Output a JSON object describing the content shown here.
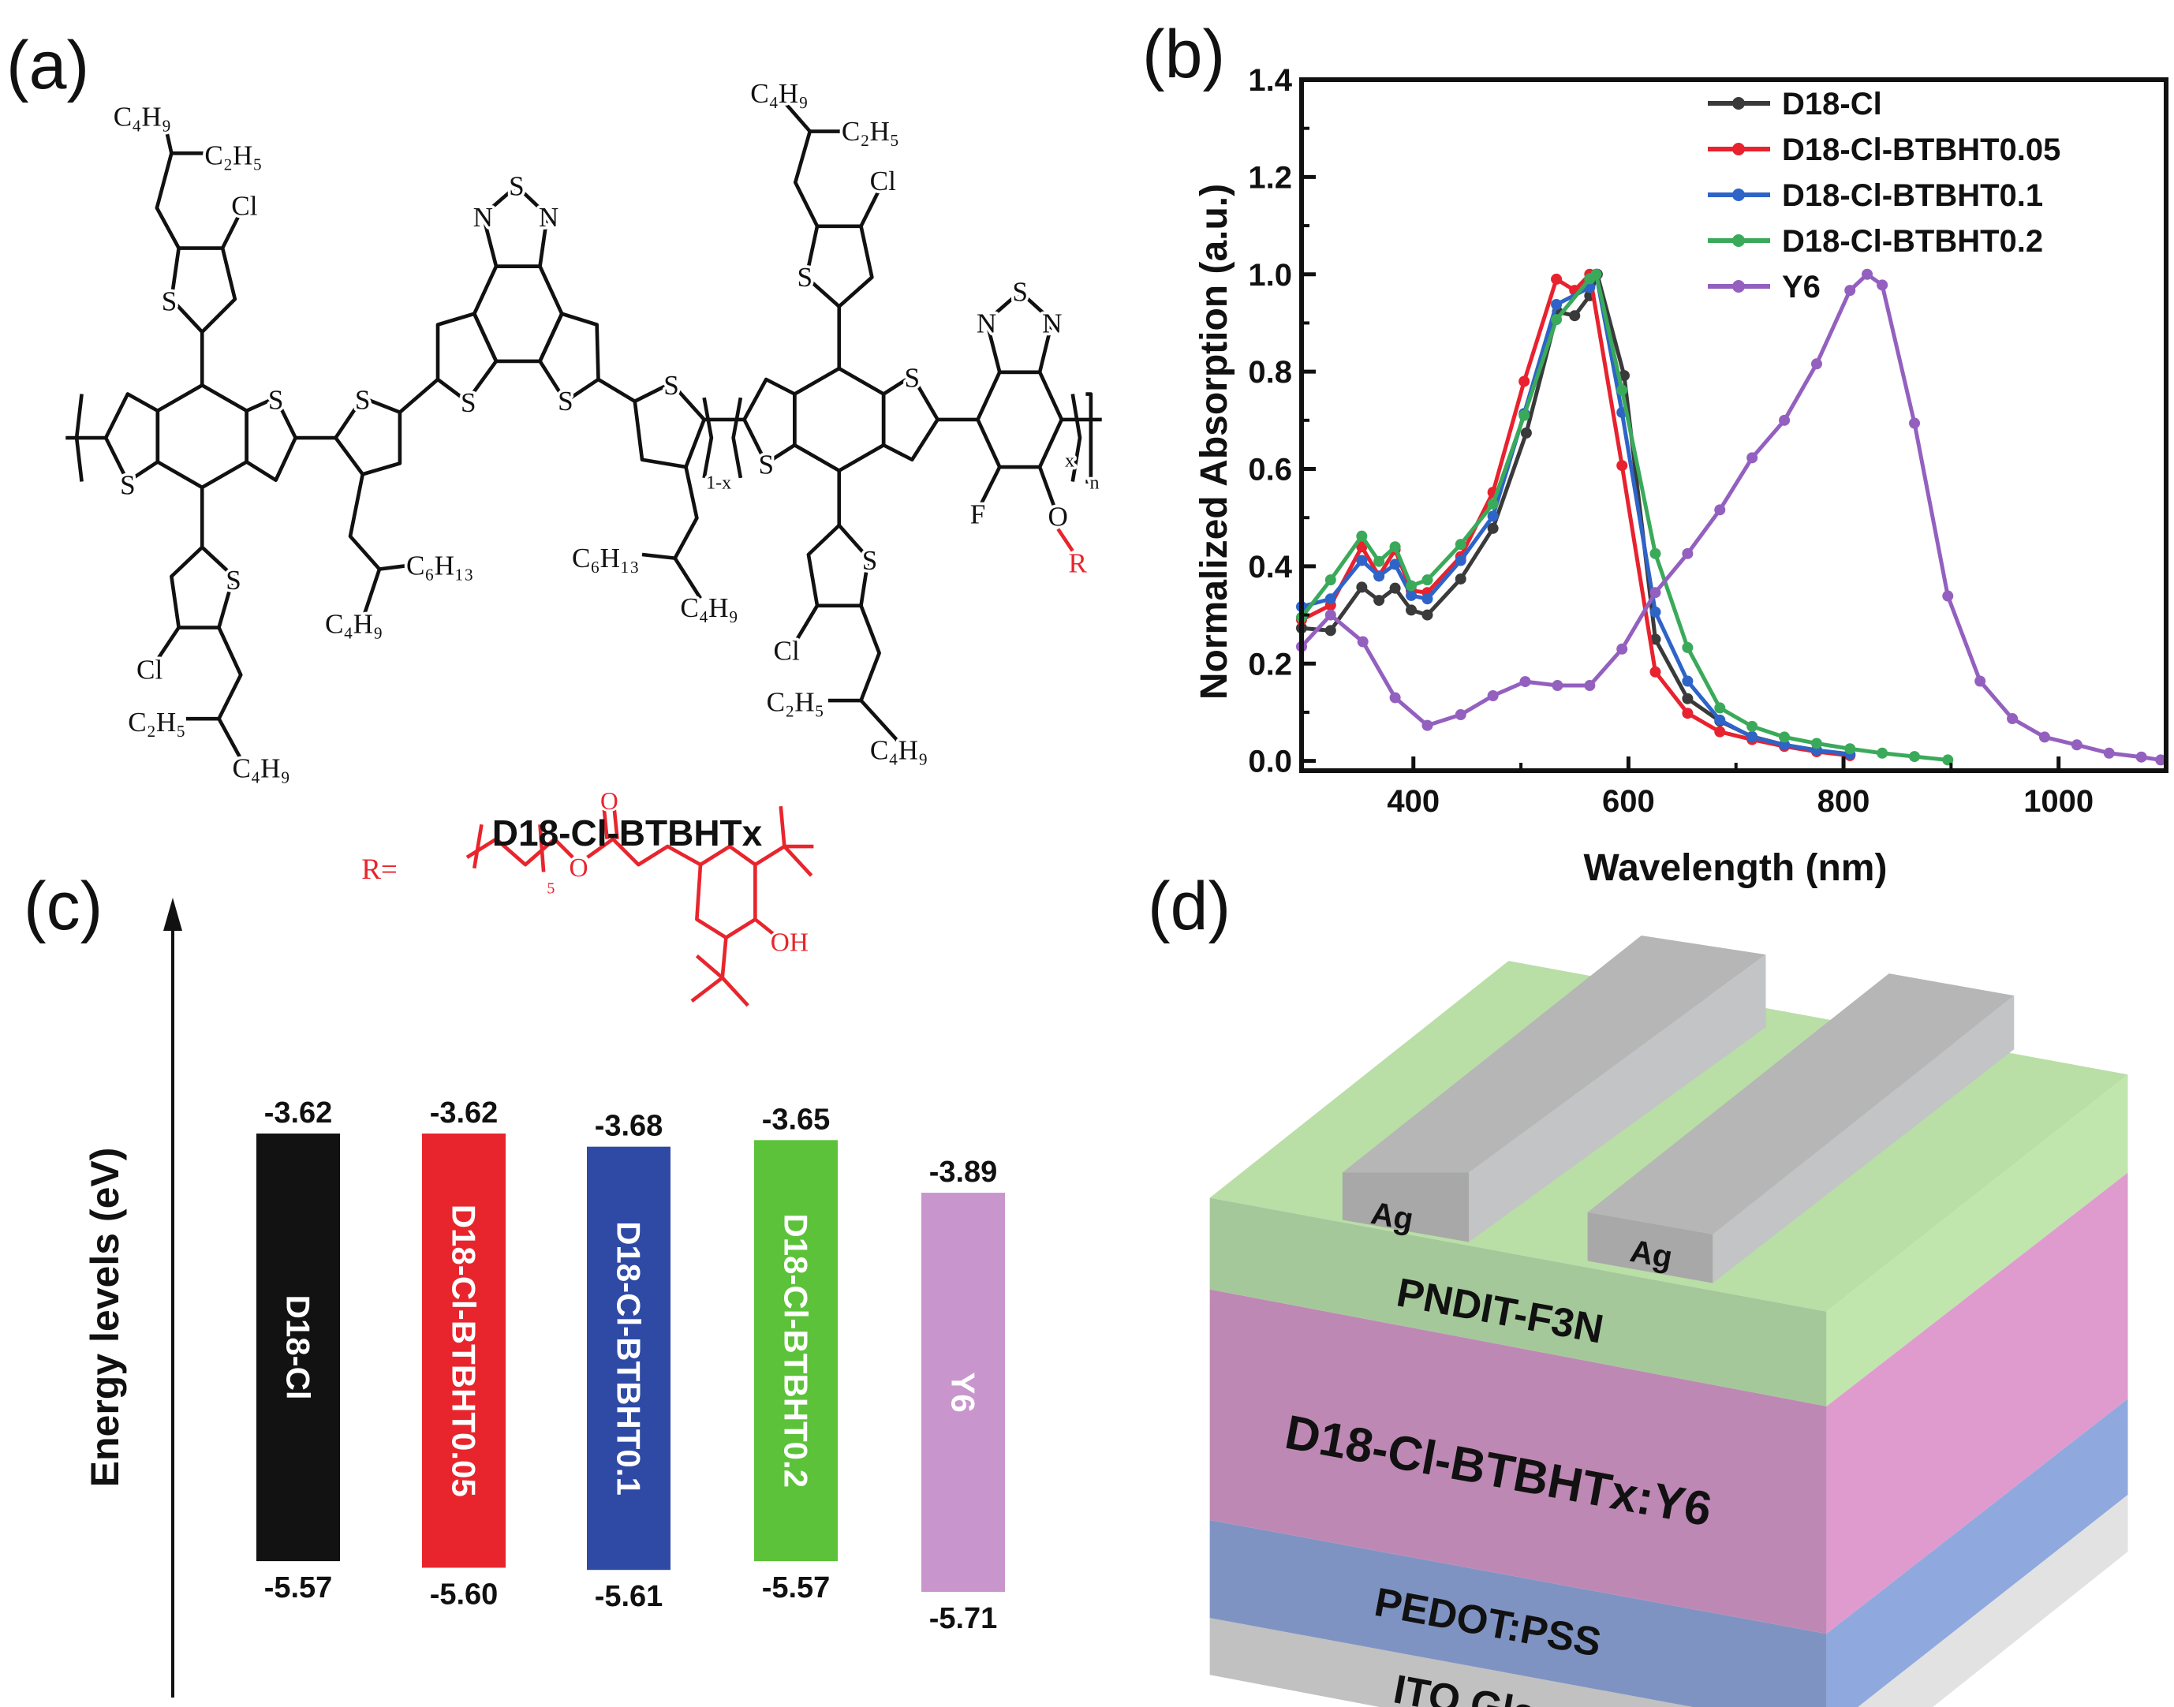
{
  "panel_labels": {
    "a": "(a)",
    "b": "(b)",
    "c": "(c)",
    "d": "(d)"
  },
  "panel_a": {
    "polymer_name": "D18-Cl-BTBHTx",
    "structure_labels": [
      "C₄H₉",
      "C₂H₅",
      "Cl",
      "S",
      "S",
      "S",
      "S",
      "Cl",
      "C₂H₅",
      "C₄H₉",
      "S",
      "C₆H₁₃",
      "C₄H₉",
      "N",
      "S",
      "N",
      "S",
      "S",
      "S",
      "C₆H₁₃",
      "C₄H₉",
      "1-x",
      "C₄H₉",
      "C₂H₅",
      "Cl",
      "S",
      "S",
      "S",
      "S",
      "Cl",
      "C₂H₅",
      "C₄H₉",
      "N",
      "S",
      "N",
      "F",
      "O",
      "x",
      "n"
    ],
    "r_marker": "R",
    "r_group_labels": [
      "R=",
      "O",
      "5",
      "O",
      "OH"
    ],
    "r_color": "#e8252d"
  },
  "chart_data": {
    "type": "line",
    "xlabel": "Wavelength (nm)",
    "ylabel": "Normalized Absorption (a.u.)",
    "xlim": [
      296,
      1100
    ],
    "ylim": [
      -0.02,
      1.4
    ],
    "xticks": [
      400,
      600,
      800,
      1000
    ],
    "xtick_labels": [
      "400",
      "600",
      "800",
      "1000"
    ],
    "yticks": [
      0.0,
      0.2,
      0.4,
      0.6,
      0.8,
      1.0,
      1.2,
      1.4
    ],
    "ytick_labels": [
      "0.0",
      "0.2",
      "0.4",
      "0.6",
      "0.8",
      "1.0",
      "1.2",
      "1.4"
    ],
    "grid": false,
    "legend_position": "top-right",
    "series": [
      {
        "name": "D18-Cl",
        "color": "#3a3a3a",
        "x": [
          296,
          323,
          352,
          368,
          383,
          398,
          413,
          444,
          474,
          505,
          534,
          550,
          564,
          571,
          596,
          625,
          655,
          685,
          715,
          745,
          775,
          806
        ],
        "y": [
          0.273,
          0.268,
          0.357,
          0.33,
          0.355,
          0.31,
          0.3,
          0.374,
          0.478,
          0.674,
          0.923,
          0.915,
          0.956,
          1.0,
          0.792,
          0.25,
          0.128,
          0.082,
          0.05,
          0.033,
          0.022,
          0.013
        ]
      },
      {
        "name": "D18-Cl-BTBHT0.05",
        "color": "#e8222e",
        "x": [
          296,
          323,
          352,
          368,
          383,
          398,
          413,
          444,
          474,
          503,
          533,
          550,
          564,
          594,
          625,
          655,
          685,
          715,
          745,
          775,
          806
        ],
        "y": [
          0.29,
          0.32,
          0.44,
          0.38,
          0.434,
          0.35,
          0.346,
          0.42,
          0.552,
          0.78,
          0.99,
          0.967,
          1.0,
          0.607,
          0.183,
          0.098,
          0.06,
          0.044,
          0.03,
          0.019,
          0.011
        ]
      },
      {
        "name": "D18-Cl-BTBHT0.1",
        "color": "#2e64c8",
        "x": [
          296,
          323,
          352,
          368,
          383,
          398,
          413,
          444,
          474,
          503,
          533,
          564,
          570,
          594,
          625,
          655,
          685,
          715,
          745,
          775,
          806
        ],
        "y": [
          0.317,
          0.333,
          0.412,
          0.38,
          0.404,
          0.34,
          0.333,
          0.412,
          0.503,
          0.714,
          0.938,
          0.973,
          1.0,
          0.716,
          0.306,
          0.164,
          0.084,
          0.049,
          0.033,
          0.022,
          0.014
        ]
      },
      {
        "name": "D18-Cl-BTBHT0.2",
        "color": "#3aaa5a",
        "x": [
          296,
          323,
          352,
          368,
          383,
          398,
          413,
          444,
          474,
          503,
          533,
          564,
          570,
          594,
          625,
          655,
          685,
          715,
          745,
          775,
          806,
          836,
          866,
          897
        ],
        "y": [
          0.295,
          0.372,
          0.462,
          0.41,
          0.44,
          0.36,
          0.372,
          0.445,
          0.528,
          0.71,
          0.907,
          0.991,
          1.0,
          0.762,
          0.426,
          0.233,
          0.109,
          0.071,
          0.049,
          0.036,
          0.025,
          0.016,
          0.009,
          0.002
        ]
      },
      {
        "name": "Y6",
        "color": "#9460bf",
        "x": [
          296,
          323,
          353,
          383,
          413,
          444,
          474,
          504,
          534,
          564,
          594,
          625,
          655,
          685,
          715,
          745,
          775,
          806,
          822,
          836,
          866,
          897,
          927,
          957,
          987,
          1017,
          1047,
          1077,
          1095
        ],
        "y": [
          0.235,
          0.3,
          0.245,
          0.13,
          0.073,
          0.095,
          0.134,
          0.163,
          0.155,
          0.155,
          0.23,
          0.346,
          0.426,
          0.516,
          0.623,
          0.7,
          0.816,
          0.967,
          1.0,
          0.978,
          0.694,
          0.339,
          0.164,
          0.087,
          0.049,
          0.033,
          0.016,
          0.008,
          0.002
        ]
      }
    ]
  },
  "panel_c": {
    "ylabel": "Energy levels (eV)",
    "materials": [
      {
        "name": "D18-Cl",
        "lumo": "-3.62",
        "homo": "-5.57",
        "lumo_val": -3.62,
        "homo_val": -5.57,
        "color": "#121212"
      },
      {
        "name": "D18-Cl-BTBHT0.05",
        "lumo": "-3.62",
        "homo": "-5.60",
        "lumo_val": -3.62,
        "homo_val": -5.6,
        "color": "#e8252d"
      },
      {
        "name": "D18-Cl-BTBHT0.1",
        "lumo": "-3.68",
        "homo": "-5.61",
        "lumo_val": -3.68,
        "homo_val": -5.61,
        "color": "#2f4aa5"
      },
      {
        "name": "D18-Cl-BTBHT0.2",
        "lumo": "-3.65",
        "homo": "-5.57",
        "lumo_val": -3.65,
        "homo_val": -5.57,
        "color": "#5cc23a"
      },
      {
        "name": "Y6",
        "lumo": "-3.89",
        "homo": "-5.71",
        "lumo_val": -3.89,
        "homo_val": -5.71,
        "color": "#c896cc"
      }
    ]
  },
  "panel_d": {
    "electrode_1": "Ag",
    "electrode_2": "Ag",
    "layers": [
      "PNDIT-F3N",
      "D18-Cl-BTBHTx:Y6",
      "PEDOT:PSS",
      "ITO Glass"
    ]
  }
}
